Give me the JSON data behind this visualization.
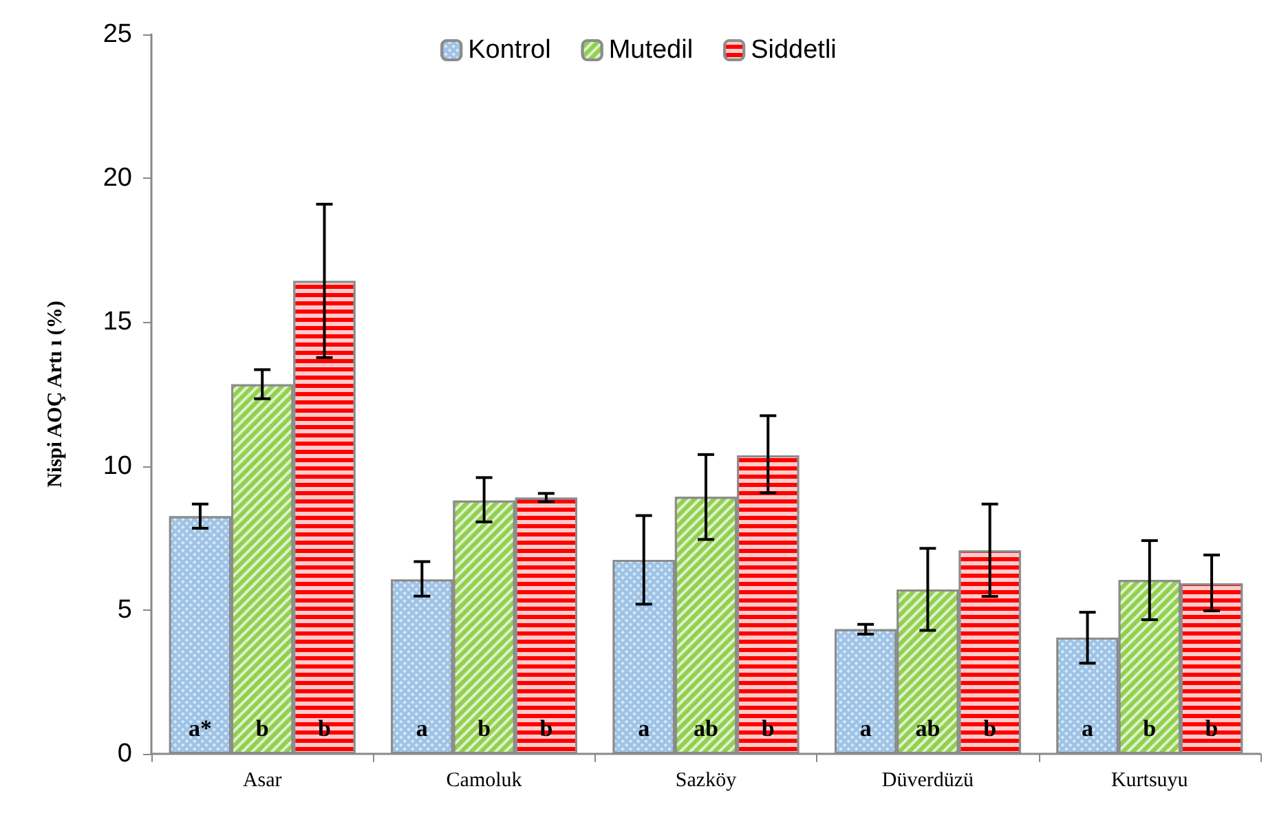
{
  "chart_data": {
    "type": "bar",
    "ylabel": "Nispi AOÇ Artı ı (%)",
    "categories": [
      "Asar",
      "Camoluk",
      "Sazköy",
      "Düverdüzü",
      "Kurtsuyu"
    ],
    "series": [
      {
        "name": "Kontrol",
        "color": "#9dc3e6",
        "values": [
          8.26,
          6.06,
          6.74,
          4.33,
          4.04
        ],
        "errors": [
          [
            7.84,
            8.68
          ],
          [
            5.48,
            6.68
          ],
          [
            5.2,
            8.28
          ],
          [
            4.16,
            4.5
          ],
          [
            3.15,
            4.92
          ]
        ],
        "value_labels": [
          "a*",
          "a",
          "a",
          "a",
          "a"
        ]
      },
      {
        "name": "Mutedil",
        "color": "#92d050",
        "values": [
          12.84,
          8.8,
          8.93,
          5.71,
          6.04
        ],
        "errors": [
          [
            12.34,
            13.35
          ],
          [
            8.06,
            9.6
          ],
          [
            7.45,
            10.4
          ],
          [
            4.29,
            7.14
          ],
          [
            4.66,
            7.41
          ]
        ],
        "value_labels": [
          "b",
          "b",
          "ab",
          "ab",
          "b"
        ]
      },
      {
        "name": "Siddetli",
        "color": "#ff0000",
        "values": [
          16.43,
          8.9,
          10.37,
          7.07,
          5.93
        ],
        "errors": [
          [
            13.77,
            19.1
          ],
          [
            8.76,
            9.05
          ],
          [
            9.07,
            11.75
          ],
          [
            5.47,
            8.68
          ],
          [
            4.97,
            6.91
          ]
        ],
        "value_labels": [
          "b",
          "b",
          "b",
          "b",
          "b"
        ]
      }
    ],
    "ylim": [
      0,
      25
    ],
    "yticks": [
      0,
      5,
      10,
      15,
      20,
      25
    ],
    "grid": false,
    "legend": "top"
  }
}
